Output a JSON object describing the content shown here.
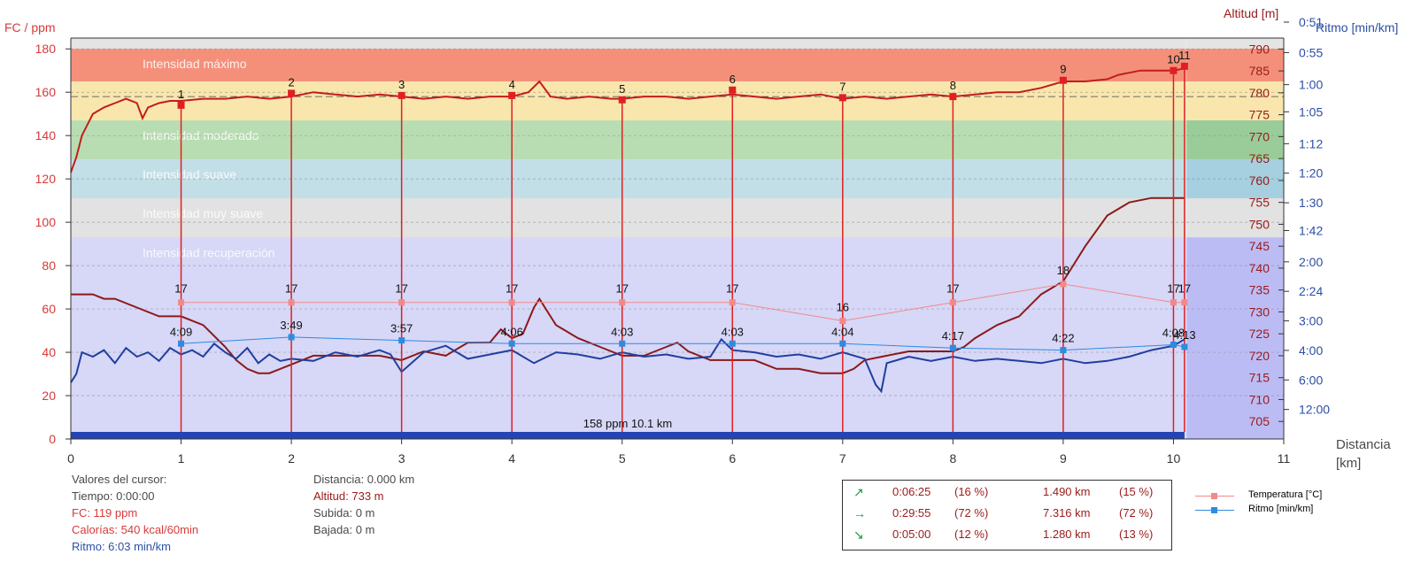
{
  "axes": {
    "left_title": "FC / ppm",
    "right_title_alt": "Altitud [m]",
    "right_title_pace": "Ritmo [min/km]",
    "x_title": "Distancia\n[km]",
    "left_ticks": [
      "0",
      "20",
      "40",
      "60",
      "80",
      "100",
      "120",
      "140",
      "160",
      "180"
    ],
    "alt_ticks": [
      "705",
      "710",
      "715",
      "720",
      "725",
      "730",
      "735",
      "740",
      "745",
      "750",
      "755",
      "760",
      "765",
      "770",
      "775",
      "780",
      "785",
      "790"
    ],
    "pace_ticks": [
      "0:51",
      "0:55",
      "1:00",
      "1:05",
      "1:12",
      "1:20",
      "1:30",
      "1:42",
      "2:00",
      "2:24",
      "3:00",
      "4:00",
      "6:00",
      "12:00"
    ],
    "x_ticks": [
      "0",
      "1",
      "2",
      "3",
      "4",
      "5",
      "6",
      "7",
      "8",
      "9",
      "10",
      "11"
    ]
  },
  "zones": [
    {
      "label": "Intensidad máximo",
      "from": 165,
      "to": 180,
      "color": "#f4907a"
    },
    {
      "label": "",
      "from": 147,
      "to": 165,
      "color": "#f9e6ad"
    },
    {
      "label": "Intensidad moderado",
      "from": 129,
      "to": 147,
      "color": "#b9ddb3"
    },
    {
      "label": "Intensidad suave",
      "from": 111,
      "to": 129,
      "color": "#c2dfe8"
    },
    {
      "label": "Intensidad muy suave",
      "from": 93,
      "to": 111,
      "color": "#e2e2e2"
    },
    {
      "label": "Intensidad recuperación",
      "from": 0,
      "to": 93,
      "color": "#d7d7f7"
    }
  ],
  "zone_right_colors": [
    "#f4907a",
    "#f9e6ad",
    "#99cc99",
    "#a6cfe0",
    "#e2e2e2",
    "#bcbcf5"
  ],
  "bottom_bar_label": "158 ppm 10.1 km",
  "cursor": {
    "title": "Valores del cursor:",
    "tiempo": "Tiempo: 0:00:00",
    "fc": "FC: 119 ppm",
    "calorias": "Calorías: 540 kcal/60min",
    "ritmo": "Ritmo: 6:03 min/km",
    "distancia": "Distancia: 0.000 km",
    "altitud": "Altitud: 733 m",
    "subida": "Subida: 0 m",
    "bajada": "Bajada: 0 m"
  },
  "slope_summary": [
    {
      "icon": "arrow-up-right-icon",
      "glyph": "↗",
      "time": "0:06:25",
      "time_pct": "(16 %)",
      "dist": "1.490 km",
      "dist_pct": "(15 %)"
    },
    {
      "icon": "arrow-right-icon",
      "glyph": "→",
      "time": "0:29:55",
      "time_pct": "(72 %)",
      "dist": "7.316 km",
      "dist_pct": "(72 %)"
    },
    {
      "icon": "arrow-down-right-icon",
      "glyph": "↘",
      "time": "0:05:00",
      "time_pct": "(12 %)",
      "dist": "1.280 km",
      "dist_pct": "(13 %)"
    }
  ],
  "legend": [
    {
      "label": "Temperatura [°C]",
      "color": "#f08a8a"
    },
    {
      "label": "Ritmo [min/km]",
      "color": "#2d8be0"
    }
  ],
  "colors": {
    "hr_line": "#c41c1c",
    "altitude_line": "#8b1a1a",
    "pace_line": "#1f3f9f",
    "temperature_line": "#f08a8a",
    "lap_pace_line": "#2d8be0",
    "lap_marker": "#e02020",
    "bottom_bar": "#2444b4"
  },
  "chart_data": {
    "type": "line",
    "xlabel": "Distancia [km]",
    "xlim": [
      0,
      11
    ],
    "ylim_hr": [
      0,
      185
    ],
    "ylim_alt": [
      701,
      792.5
    ],
    "series": [
      {
        "name": "FC",
        "axis": "hr",
        "x": [
          0,
          0.05,
          0.1,
          0.2,
          0.3,
          0.4,
          0.5,
          0.6,
          0.65,
          0.7,
          0.8,
          0.9,
          1.0,
          1.2,
          1.4,
          1.6,
          1.8,
          2.0,
          2.2,
          2.4,
          2.6,
          2.8,
          3.0,
          3.2,
          3.4,
          3.6,
          3.8,
          4.0,
          4.15,
          4.25,
          4.35,
          4.5,
          4.7,
          4.9,
          5.0,
          5.2,
          5.4,
          5.6,
          5.8,
          6.0,
          6.2,
          6.4,
          6.6,
          6.8,
          7.0,
          7.2,
          7.4,
          7.6,
          7.8,
          8.0,
          8.2,
          8.4,
          8.6,
          8.8,
          9.0,
          9.2,
          9.4,
          9.5,
          9.6,
          9.7,
          9.8,
          9.9,
          10.0,
          10.1
        ],
        "y": [
          123,
          130,
          140,
          150,
          153,
          155,
          157,
          155,
          148,
          153,
          155,
          156,
          156,
          157,
          157,
          158,
          157,
          158,
          160,
          159,
          158,
          159,
          158,
          157,
          158,
          157,
          158,
          158,
          160,
          165,
          158,
          157,
          158,
          157,
          157,
          158,
          158,
          157,
          158,
          159,
          158,
          157,
          158,
          159,
          157,
          158,
          157,
          158,
          159,
          158,
          159,
          160,
          160,
          162,
          165,
          165,
          166,
          168,
          169,
          170,
          170,
          170,
          170,
          171
        ]
      },
      {
        "name": "Altitud",
        "axis": "alt",
        "x": [
          0,
          0.2,
          0.3,
          0.4,
          0.6,
          0.8,
          1.0,
          1.2,
          1.4,
          1.5,
          1.6,
          1.7,
          1.8,
          1.9,
          2.0,
          2.2,
          2.4,
          2.6,
          2.8,
          3.0,
          3.2,
          3.4,
          3.6,
          3.8,
          3.9,
          4.0,
          4.1,
          4.2,
          4.25,
          4.3,
          4.4,
          4.6,
          4.8,
          5.0,
          5.2,
          5.4,
          5.5,
          5.6,
          5.8,
          6.0,
          6.2,
          6.4,
          6.6,
          6.8,
          7.0,
          7.1,
          7.2,
          7.4,
          7.6,
          7.8,
          8.0,
          8.1,
          8.2,
          8.4,
          8.6,
          8.8,
          9.0,
          9.1,
          9.2,
          9.4,
          9.6,
          9.8,
          9.9,
          10.1
        ],
        "y": [
          734,
          734,
          733,
          733,
          731,
          729,
          729,
          727,
          722,
          719,
          717,
          716,
          716,
          717,
          718,
          720,
          720,
          720,
          720,
          719,
          721,
          720,
          723,
          723,
          726,
          724,
          725,
          731,
          733,
          731,
          727,
          724,
          722,
          720,
          720,
          722,
          723,
          721,
          719,
          719,
          719,
          717,
          717,
          716,
          716,
          717,
          719,
          720,
          721,
          721,
          721,
          722,
          724,
          727,
          729,
          734,
          737,
          741,
          745,
          752,
          755,
          756,
          756,
          756
        ]
      },
      {
        "name": "Ritmo (FC scale)",
        "axis": "hr",
        "x": [
          0,
          0.05,
          0.1,
          0.2,
          0.3,
          0.4,
          0.5,
          0.6,
          0.7,
          0.8,
          0.9,
          1.0,
          1.1,
          1.2,
          1.3,
          1.4,
          1.5,
          1.6,
          1.7,
          1.8,
          1.9,
          2.0,
          2.2,
          2.4,
          2.6,
          2.8,
          2.9,
          3.0,
          3.2,
          3.4,
          3.6,
          3.8,
          4.0,
          4.2,
          4.4,
          4.6,
          4.8,
          5.0,
          5.2,
          5.4,
          5.6,
          5.8,
          5.9,
          6.0,
          6.2,
          6.4,
          6.6,
          6.8,
          7.0,
          7.2,
          7.3,
          7.35,
          7.4,
          7.6,
          7.8,
          8.0,
          8.2,
          8.4,
          8.6,
          8.8,
          9.0,
          9.2,
          9.4,
          9.6,
          9.8,
          10.0,
          10.1
        ],
        "y": [
          26,
          30,
          40,
          38,
          41,
          35,
          42,
          38,
          40,
          36,
          42,
          39,
          41,
          38,
          44,
          40,
          37,
          42,
          35,
          39,
          36,
          37,
          36,
          40,
          38,
          41,
          39,
          31,
          40,
          43,
          37,
          39,
          41,
          35,
          40,
          39,
          37,
          40,
          38,
          39,
          37,
          38,
          46,
          41,
          40,
          38,
          39,
          37,
          40,
          37,
          25,
          22,
          35,
          38,
          36,
          38,
          36,
          37,
          36,
          35,
          37,
          35,
          36,
          38,
          41,
          43,
          46
        ]
      },
      {
        "name": "Temperatura [°C]",
        "axis": "hr",
        "x": [
          1,
          2,
          3,
          4,
          5,
          6,
          7,
          8,
          9,
          10,
          10.1
        ],
        "y": [
          63,
          63,
          63,
          63,
          63,
          63,
          54.5,
          63,
          71.5,
          63,
          63
        ],
        "labels": [
          "17",
          "17",
          "17",
          "17",
          "17",
          "17",
          "16",
          "17",
          "18",
          "17",
          "17"
        ]
      },
      {
        "name": "Ritmo [min/km]",
        "axis": "hr",
        "x": [
          1,
          2,
          3,
          4,
          5,
          6,
          7,
          8,
          9,
          10,
          10.1
        ],
        "y": [
          44,
          47,
          45.5,
          44,
          44,
          44,
          44,
          42,
          41,
          43.5,
          42.5
        ],
        "labels": [
          "4:09",
          "3:49",
          "3:57",
          "4:06",
          "4:03",
          "4:03",
          "4:04",
          "4:17",
          "4:22",
          "4:08",
          "4:13"
        ]
      }
    ],
    "laps": [
      {
        "label": "1",
        "x": 1,
        "hr": 154
      },
      {
        "label": "2",
        "x": 2,
        "hr": 159.5
      },
      {
        "label": "3",
        "x": 3,
        "hr": 158.5
      },
      {
        "label": "4",
        "x": 4,
        "hr": 158.5
      },
      {
        "label": "5",
        "x": 5,
        "hr": 156.5
      },
      {
        "label": "6",
        "x": 6,
        "hr": 161
      },
      {
        "label": "7",
        "x": 7,
        "hr": 157.5
      },
      {
        "label": "8",
        "x": 8,
        "hr": 158
      },
      {
        "label": "9",
        "x": 9,
        "hr": 165.5
      },
      {
        "label": "10",
        "x": 10,
        "hr": 170
      },
      {
        "label": "11",
        "x": 10.1,
        "hr": 172
      }
    ],
    "pace_axis_values": [
      0.85,
      0.917,
      1.0,
      1.083,
      1.2,
      1.333,
      1.5,
      1.7,
      2.0,
      2.4,
      3.0,
      4.0,
      6.0,
      12.0
    ]
  }
}
